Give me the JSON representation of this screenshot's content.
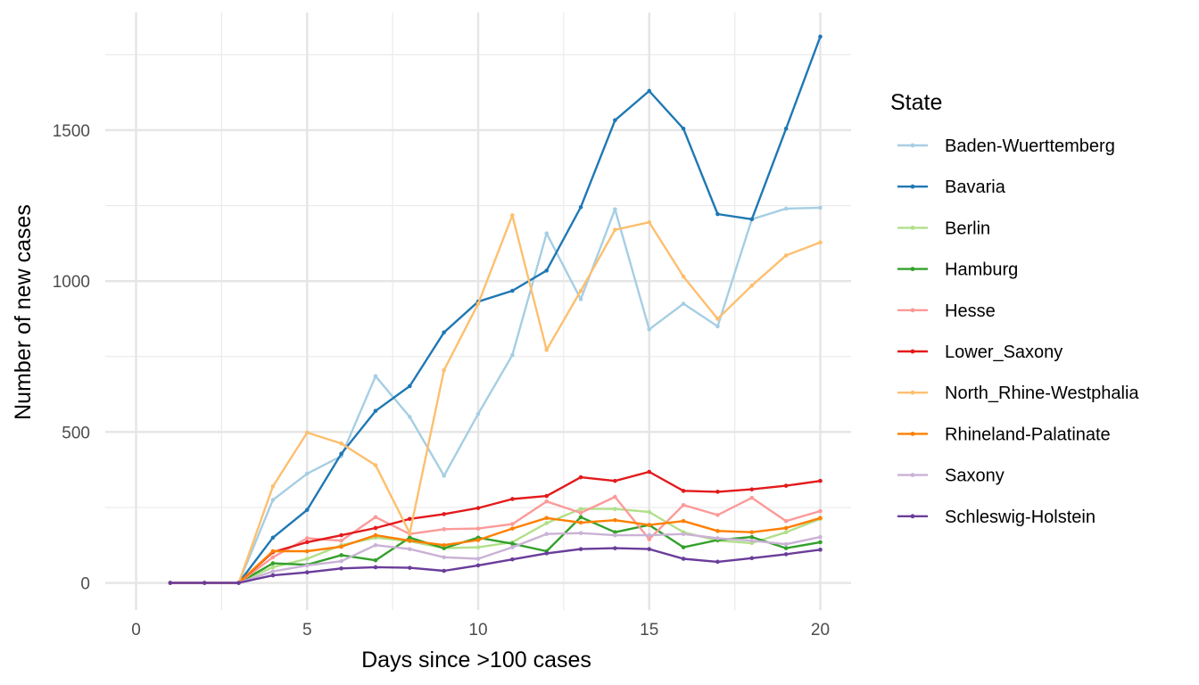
{
  "chart_data": {
    "type": "line",
    "xlabel": "Days since >100 cases",
    "ylabel": "Number of new cases",
    "xlim": [
      -0.9,
      20.9
    ],
    "ylim": [
      -90,
      1890
    ],
    "x_ticks": [
      0,
      5,
      10,
      15,
      20
    ],
    "x_tick_labels": [
      "0",
      "5",
      "10",
      "15",
      "20"
    ],
    "y_ticks": [
      0,
      500,
      1000,
      1500
    ],
    "y_tick_labels": [
      "0",
      "500",
      "1000",
      "1500"
    ],
    "grid": true,
    "legend": {
      "title": "State",
      "position": "right"
    },
    "x": [
      1,
      2,
      3,
      4,
      5,
      6,
      7,
      8,
      9,
      10,
      11,
      12,
      13,
      14,
      15,
      16,
      17,
      18,
      19,
      20
    ],
    "series": [
      {
        "name": "Baden-Wuerttemberg",
        "color": "#a6cee3",
        "values": [
          0,
          0,
          0,
          275,
          362,
          420,
          685,
          550,
          355,
          560,
          755,
          1158,
          940,
          1238,
          840,
          925,
          850,
          1205,
          1240,
          1243
        ]
      },
      {
        "name": "Bavaria",
        "color": "#1f78b4",
        "values": [
          0,
          0,
          0,
          150,
          242,
          428,
          570,
          652,
          830,
          932,
          968,
          1035,
          1245,
          1533,
          1630,
          1505,
          1222,
          1205,
          1505,
          1810
        ]
      },
      {
        "name": "Berlin",
        "color": "#b2df8a",
        "values": [
          0,
          0,
          0,
          52,
          80,
          125,
          150,
          138,
          115,
          118,
          135,
          198,
          245,
          245,
          235,
          168,
          140,
          132,
          168,
          212
        ]
      },
      {
        "name": "Hamburg",
        "color": "#33a02c",
        "values": [
          0,
          0,
          0,
          65,
          60,
          92,
          75,
          150,
          115,
          150,
          130,
          105,
          218,
          168,
          192,
          118,
          142,
          152,
          115,
          135
        ]
      },
      {
        "name": "Hesse",
        "color": "#fb9a99",
        "values": [
          0,
          0,
          0,
          85,
          148,
          140,
          218,
          162,
          178,
          180,
          195,
          270,
          232,
          285,
          145,
          258,
          225,
          282,
          205,
          238
        ]
      },
      {
        "name": "Lower_Saxony",
        "color": "#e31a1c",
        "values": [
          0,
          0,
          0,
          102,
          135,
          158,
          182,
          212,
          228,
          248,
          278,
          288,
          350,
          338,
          368,
          305,
          302,
          310,
          322,
          338
        ]
      },
      {
        "name": "North_Rhine-Westphalia",
        "color": "#fdbf6f",
        "values": [
          0,
          0,
          0,
          320,
          498,
          462,
          390,
          165,
          705,
          925,
          1218,
          772,
          968,
          1170,
          1195,
          1015,
          875,
          985,
          1085,
          1128
        ]
      },
      {
        "name": "Rhineland-Palatinate",
        "color": "#ff7f00",
        "values": [
          0,
          0,
          0,
          105,
          105,
          120,
          158,
          140,
          125,
          142,
          180,
          215,
          200,
          208,
          192,
          205,
          172,
          168,
          182,
          215
        ]
      },
      {
        "name": "Saxony",
        "color": "#cab2d6",
        "values": [
          0,
          0,
          0,
          38,
          58,
          72,
          125,
          112,
          85,
          80,
          118,
          162,
          165,
          158,
          158,
          162,
          148,
          140,
          128,
          152
        ]
      },
      {
        "name": "Schleswig-Holstein",
        "color": "#6a3d9a",
        "values": [
          0,
          0,
          0,
          25,
          35,
          48,
          52,
          50,
          40,
          58,
          78,
          98,
          112,
          115,
          112,
          80,
          70,
          82,
          95,
          110
        ]
      }
    ]
  }
}
